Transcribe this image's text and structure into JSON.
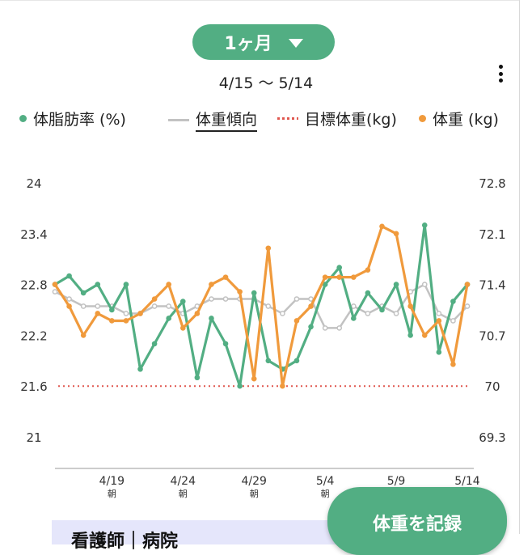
{
  "period": {
    "label": "1ヶ月"
  },
  "date_range": "4/15 ～ 5/14",
  "legend": {
    "body_fat": "体脂肪率 (%)",
    "trend": "体重傾向",
    "target": "目標体重(kg)",
    "weight": "体重 (kg)"
  },
  "colors": {
    "body_fat": "#52ae83",
    "weight": "#f09a3c",
    "trend": "#c2c2c2",
    "target": "#e0574f"
  },
  "record_button": "体重を記録",
  "bottom_card": "看護師｜病院",
  "chart_data": {
    "type": "line",
    "x_dates": [
      "4/15",
      "4/16",
      "4/17",
      "4/18",
      "4/19",
      "4/20",
      "4/21",
      "4/22",
      "4/23",
      "4/24",
      "4/25",
      "4/26",
      "4/27",
      "4/28",
      "4/29",
      "4/30",
      "5/1",
      "5/2",
      "5/3",
      "5/4",
      "5/5",
      "5/6",
      "5/7",
      "5/8",
      "5/9",
      "5/10",
      "5/11",
      "5/12",
      "5/13",
      "5/14"
    ],
    "x_ticks": [
      {
        "date": "4/19",
        "sub": "朝"
      },
      {
        "date": "4/24",
        "sub": "朝"
      },
      {
        "date": "4/29",
        "sub": "朝"
      },
      {
        "date": "5/4",
        "sub": "朝"
      },
      {
        "date": "5/9",
        "sub": ""
      },
      {
        "date": "5/14",
        "sub": ""
      }
    ],
    "y_left": {
      "ticks": [
        "24",
        "23.4",
        "22.8",
        "22.2",
        "21.6",
        "21"
      ],
      "range": [
        21,
        24
      ]
    },
    "y_right": {
      "ticks": [
        "72.8",
        "72.1",
        "71.4",
        "70.7",
        "70",
        "69.3"
      ],
      "range": [
        69.3,
        72.8
      ]
    },
    "target_weight": 70,
    "series": [
      {
        "name": "体脂肪率 (%)",
        "axis": "left",
        "values": [
          22.8,
          22.9,
          22.7,
          22.8,
          22.5,
          22.8,
          21.8,
          22.1,
          22.4,
          22.6,
          21.7,
          22.4,
          22.1,
          21.6,
          22.7,
          21.9,
          21.8,
          21.9,
          22.3,
          22.8,
          23.0,
          22.4,
          22.7,
          22.5,
          22.8,
          22.2,
          23.5,
          22.0,
          22.6,
          22.8
        ]
      },
      {
        "name": "体重傾向",
        "axis": "right",
        "values": [
          71.3,
          71.2,
          71.1,
          71.1,
          71.1,
          71.0,
          71.0,
          71.1,
          71.1,
          71.0,
          71.1,
          71.2,
          71.2,
          71.2,
          71.2,
          71.1,
          71.0,
          71.2,
          71.2,
          70.8,
          70.8,
          71.1,
          71.0,
          71.1,
          71.0,
          71.3,
          71.4,
          71.0,
          70.9,
          71.1
        ]
      },
      {
        "name": "体重 (kg)",
        "axis": "right",
        "values": [
          71.4,
          71.1,
          70.7,
          71.0,
          70.9,
          70.9,
          71.0,
          71.2,
          71.4,
          70.8,
          71.0,
          71.4,
          71.5,
          71.3,
          70.1,
          71.9,
          70.0,
          70.9,
          71.1,
          71.5,
          71.5,
          71.5,
          71.6,
          72.2,
          72.1,
          71.1,
          70.7,
          70.9,
          70.3,
          71.4
        ]
      }
    ]
  }
}
